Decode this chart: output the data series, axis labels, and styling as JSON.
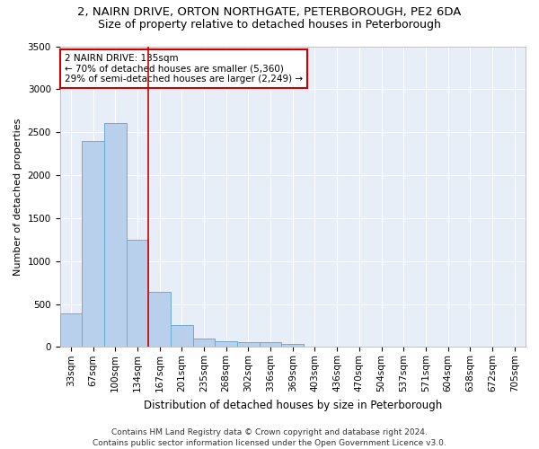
{
  "title1": "2, NAIRN DRIVE, ORTON NORTHGATE, PETERBOROUGH, PE2 6DA",
  "title2": "Size of property relative to detached houses in Peterborough",
  "xlabel": "Distribution of detached houses by size in Peterborough",
  "ylabel": "Number of detached properties",
  "categories": [
    "33sqm",
    "67sqm",
    "100sqm",
    "134sqm",
    "167sqm",
    "201sqm",
    "235sqm",
    "268sqm",
    "302sqm",
    "336sqm",
    "369sqm",
    "403sqm",
    "436sqm",
    "470sqm",
    "504sqm",
    "537sqm",
    "571sqm",
    "604sqm",
    "638sqm",
    "672sqm",
    "705sqm"
  ],
  "values": [
    390,
    2400,
    2610,
    1250,
    640,
    260,
    100,
    65,
    60,
    55,
    40,
    0,
    0,
    0,
    0,
    0,
    0,
    0,
    0,
    0,
    0
  ],
  "bar_color": "#b8d0eb",
  "bar_edge_color": "#6aacd6",
  "highlight_bar_index": 3,
  "highlight_color": "#cc0000",
  "annotation_text": "2 NAIRN DRIVE: 135sqm\n← 70% of detached houses are smaller (5,360)\n29% of semi-detached houses are larger (2,249) →",
  "annotation_box_color": "#ffffff",
  "annotation_box_edge": "#cc0000",
  "ylim": [
    0,
    3500
  ],
  "yticks": [
    0,
    500,
    1000,
    1500,
    2000,
    2500,
    3000,
    3500
  ],
  "footer": "Contains HM Land Registry data © Crown copyright and database right 2024.\nContains public sector information licensed under the Open Government Licence v3.0.",
  "bg_color": "#e8eef8",
  "grid_color": "#ffffff",
  "title1_fontsize": 9.5,
  "title2_fontsize": 9,
  "xlabel_fontsize": 8.5,
  "ylabel_fontsize": 8,
  "tick_fontsize": 7.5,
  "annotation_fontsize": 7.5,
  "footer_fontsize": 6.5
}
